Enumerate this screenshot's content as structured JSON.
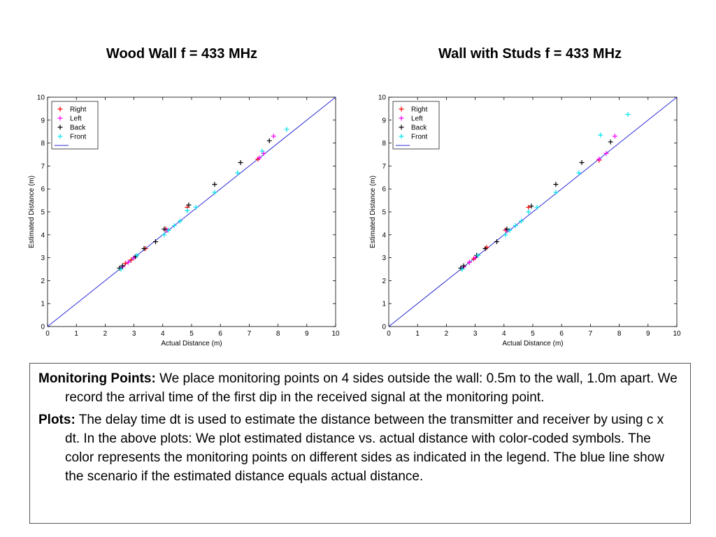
{
  "charts": [
    {
      "title": "Wood Wall f = 433 MHz",
      "xlabel": "Actual Distance (m)",
      "ylabel": "Estimated Distance (m)"
    },
    {
      "title": "Wall with Studs f = 433 MHz",
      "xlabel": "Actual Distance (m)",
      "ylabel": "Estimated Distance (m)"
    }
  ],
  "chart_data": [
    {
      "type": "scatter",
      "title": "Wood Wall f = 433 MHz",
      "xlabel": "Actual Distance (m)",
      "ylabel": "Estimated Distance (m)",
      "xlim": [
        0,
        10
      ],
      "ylim": [
        0,
        10
      ],
      "xticks": [
        0,
        1,
        2,
        3,
        4,
        5,
        6,
        7,
        8,
        9,
        10
      ],
      "yticks": [
        0,
        1,
        2,
        3,
        4,
        5,
        6,
        7,
        8,
        9,
        10
      ],
      "grid": false,
      "legend_position": "top-left",
      "series": [
        {
          "name": "Right",
          "marker": "+",
          "color": "#ff0000",
          "x": [
            2.7,
            2.9,
            3.4,
            4.1,
            4.85,
            7.3
          ],
          "y": [
            2.75,
            2.9,
            3.4,
            4.25,
            5.2,
            7.3
          ]
        },
        {
          "name": "Left",
          "marker": "+",
          "color": "#ff00ff",
          "x": [
            2.6,
            2.8,
            3.0,
            4.15,
            7.35,
            7.5,
            7.85
          ],
          "y": [
            2.6,
            2.8,
            3.0,
            4.2,
            7.35,
            7.55,
            8.3
          ]
        },
        {
          "name": "Back",
          "marker": "+",
          "color": "#000000",
          "x": [
            2.5,
            2.6,
            3.05,
            3.35,
            3.75,
            4.05,
            4.9,
            5.8,
            6.7,
            7.7
          ],
          "y": [
            2.55,
            2.65,
            3.05,
            3.4,
            3.7,
            4.25,
            5.3,
            6.2,
            7.15,
            8.1
          ]
        },
        {
          "name": "Front",
          "marker": "+",
          "color": "#00e5ee",
          "x": [
            2.55,
            3.1,
            4.05,
            4.2,
            4.4,
            4.6,
            4.85,
            5.15,
            5.8,
            6.6,
            7.45,
            8.3
          ],
          "y": [
            2.5,
            3.1,
            4.0,
            4.2,
            4.4,
            4.6,
            5.05,
            5.2,
            5.85,
            6.7,
            7.65,
            8.6
          ]
        },
        {
          "name": "",
          "type": "line",
          "color": "#2b2bd6",
          "x": [
            0,
            10
          ],
          "y": [
            0,
            10
          ]
        }
      ]
    },
    {
      "type": "scatter",
      "title": "Wall with Studs f = 433 MHz",
      "xlabel": "Actual Distance (m)",
      "ylabel": "Estimated Distance (m)",
      "xlim": [
        0,
        10
      ],
      "ylim": [
        0,
        10
      ],
      "xticks": [
        0,
        1,
        2,
        3,
        4,
        5,
        6,
        7,
        8,
        9,
        10
      ],
      "yticks": [
        0,
        1,
        2,
        3,
        4,
        5,
        6,
        7,
        8,
        9,
        10
      ],
      "grid": false,
      "legend_position": "top-left",
      "series": [
        {
          "name": "Right",
          "marker": "+",
          "color": "#ff0000",
          "x": [
            2.8,
            2.95,
            3.4,
            4.05,
            4.85,
            7.3
          ],
          "y": [
            2.8,
            2.95,
            3.45,
            4.2,
            5.2,
            7.25
          ]
        },
        {
          "name": "Left",
          "marker": "+",
          "color": "#ff00ff",
          "x": [
            2.6,
            2.8,
            3.0,
            4.1,
            7.3,
            7.55,
            7.85
          ],
          "y": [
            2.6,
            2.8,
            3.0,
            4.2,
            7.3,
            7.55,
            8.3
          ]
        },
        {
          "name": "Back",
          "marker": "+",
          "color": "#000000",
          "x": [
            2.5,
            2.6,
            3.05,
            3.35,
            3.75,
            4.1,
            4.95,
            5.8,
            6.7,
            7.7
          ],
          "y": [
            2.55,
            2.65,
            3.1,
            3.4,
            3.7,
            4.25,
            5.25,
            6.2,
            7.15,
            8.05
          ]
        },
        {
          "name": "Front",
          "marker": "+",
          "color": "#00e5ee",
          "x": [
            2.55,
            3.1,
            4.05,
            4.2,
            4.4,
            4.6,
            4.85,
            5.15,
            5.8,
            6.6,
            7.35,
            8.3
          ],
          "y": [
            2.5,
            3.1,
            4.0,
            4.2,
            4.4,
            4.6,
            5.0,
            5.2,
            5.85,
            6.7,
            8.35,
            9.25
          ]
        },
        {
          "name": "",
          "type": "line",
          "color": "#2b2bd6",
          "x": [
            0,
            10
          ],
          "y": [
            0,
            10
          ]
        }
      ]
    }
  ],
  "textbox": {
    "p1_heading": "Monitoring Points:",
    "p1_body": " We place monitoring points on 4 sides outside the wall: 0.5m to the wall, 1.0m apart. We record the arrival time of the first dip in the received signal at the monitoring point.",
    "p2_heading": "Plots:",
    "p2_body": " The delay time dt is used to estimate the distance between the transmitter and receiver by using c x dt. In the above plots: We plot estimated distance vs. actual distance with color-coded symbols. The color represents the monitoring points on different sides as indicated in the legend. The blue line show the scenario if the estimated distance equals actual distance."
  }
}
